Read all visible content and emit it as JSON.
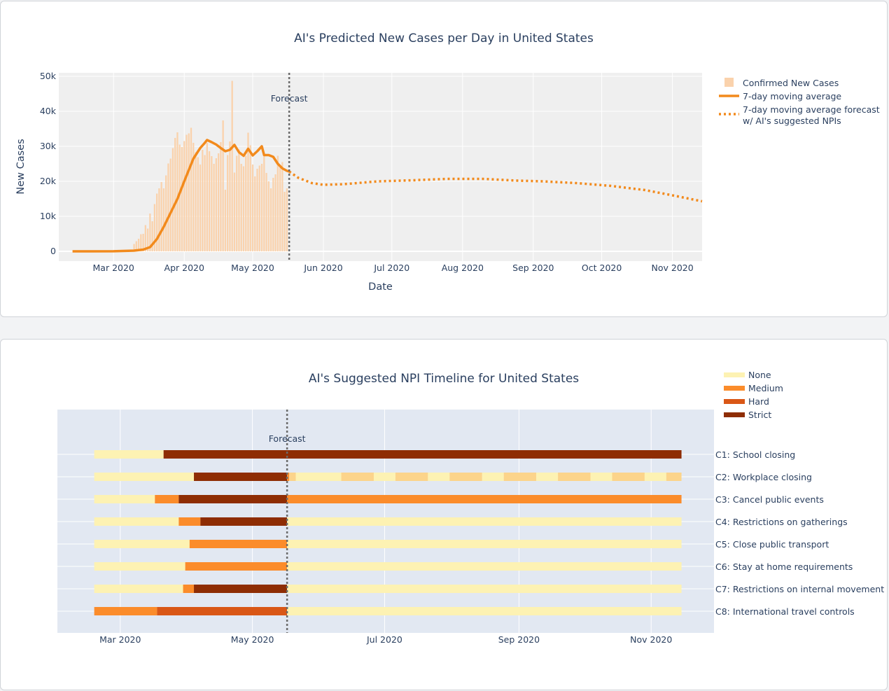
{
  "colors": {
    "bar": "#fad2ac",
    "line": "#f28a1c",
    "forecast_line": "#f28a1c",
    "vline": "#6b6b6b",
    "plot_bg_1": "#efefef",
    "plot_bg_2": "#e2e8f2",
    "none": "#fdf2b3",
    "none_alt": "#fcd48b",
    "medium": "#fb8c2b",
    "hard": "#d95716",
    "strict": "#8e2d04"
  },
  "chart_data": [
    {
      "type": "bar",
      "title": "AI's Predicted New Cases per Day in United States",
      "xlabel": "Date",
      "ylabel": "New Cases",
      "xlim": [
        "2020-02-06",
        "2020-11-14"
      ],
      "ylim": [
        -2800,
        51000
      ],
      "x_ticks": [
        "2020-03-01",
        "2020-04-01",
        "2020-05-01",
        "2020-06-01",
        "2020-07-01",
        "2020-08-01",
        "2020-09-01",
        "2020-10-01",
        "2020-11-01"
      ],
      "x_tick_labels": [
        "Mar 2020",
        "Apr 2020",
        "May 2020",
        "Jun 2020",
        "Jul 2020",
        "Aug 2020",
        "Sep 2020",
        "Oct 2020",
        "Nov 2020"
      ],
      "y_ticks": [
        0,
        10000,
        20000,
        30000,
        40000,
        50000
      ],
      "y_tick_labels": [
        "0",
        "10k",
        "20k",
        "30k",
        "40k",
        "50k"
      ],
      "grid": true,
      "legend_position": "top-right",
      "forecast_date": "2020-05-17",
      "forecast_label": "Forecast",
      "series": [
        {
          "name": "Confirmed New Cases",
          "type": "bar",
          "start_date": "2020-03-10",
          "values": [
            2100,
            2900,
            3600,
            4900,
            5000,
            7500,
            6500,
            10800,
            8600,
            13500,
            16500,
            18000,
            19800,
            18000,
            21700,
            25100,
            26500,
            29500,
            32400,
            34000,
            30500,
            29800,
            31500,
            33300,
            33700,
            35300,
            31000,
            28300,
            26900,
            24800,
            29000,
            27500,
            31000,
            28600,
            27200,
            25000,
            26600,
            28000,
            31200,
            37400,
            17600,
            27500,
            31400,
            48700,
            22500,
            27300,
            29100,
            25000,
            24300,
            27300,
            33900,
            30300,
            24800,
            21400,
            23600,
            24500,
            25000,
            27600,
            22400,
            20000,
            18000,
            21000,
            22000,
            27300,
            24000,
            25500,
            17000,
            18000
          ]
        },
        {
          "name": "7-day moving average",
          "type": "line",
          "points": [
            [
              "2020-02-12",
              0
            ],
            [
              "2020-03-01",
              30
            ],
            [
              "2020-03-10",
              200
            ],
            [
              "2020-03-14",
              500
            ],
            [
              "2020-03-17",
              1200
            ],
            [
              "2020-03-20",
              3500
            ],
            [
              "2020-03-23",
              7000
            ],
            [
              "2020-03-26",
              11000
            ],
            [
              "2020-03-29",
              15000
            ],
            [
              "2020-04-01",
              20000
            ],
            [
              "2020-04-05",
              26500
            ],
            [
              "2020-04-08",
              29500
            ],
            [
              "2020-04-10",
              31000
            ],
            [
              "2020-04-11",
              31800
            ],
            [
              "2020-04-13",
              31200
            ],
            [
              "2020-04-15",
              30500
            ],
            [
              "2020-04-17",
              29500
            ],
            [
              "2020-04-19",
              28600
            ],
            [
              "2020-04-21",
              29000
            ],
            [
              "2020-04-23",
              30400
            ],
            [
              "2020-04-25",
              28300
            ],
            [
              "2020-04-27",
              27300
            ],
            [
              "2020-04-29",
              29300
            ],
            [
              "2020-05-01",
              27400
            ],
            [
              "2020-05-03",
              28600
            ],
            [
              "2020-05-05",
              30000
            ],
            [
              "2020-05-06",
              27500
            ],
            [
              "2020-05-08",
              27500
            ],
            [
              "2020-05-10",
              27000
            ],
            [
              "2020-05-12",
              25000
            ],
            [
              "2020-05-14",
              23700
            ],
            [
              "2020-05-16",
              23000
            ],
            [
              "2020-05-17",
              22800
            ]
          ]
        },
        {
          "name": "7-day moving average forecast w/ AI's suggested NPIs",
          "name_lines": [
            "7-day moving average forecast",
            "w/ AI's suggested NPIs"
          ],
          "type": "line",
          "style": "dotted",
          "points": [
            [
              "2020-05-17",
              22800
            ],
            [
              "2020-05-21",
              21000
            ],
            [
              "2020-05-27",
              19500
            ],
            [
              "2020-06-01",
              19000
            ],
            [
              "2020-06-10",
              19200
            ],
            [
              "2020-06-25",
              20000
            ],
            [
              "2020-07-10",
              20300
            ],
            [
              "2020-07-25",
              20700
            ],
            [
              "2020-08-10",
              20700
            ],
            [
              "2020-08-25",
              20200
            ],
            [
              "2020-09-05",
              20000
            ],
            [
              "2020-09-20",
              19500
            ],
            [
              "2020-10-05",
              18700
            ],
            [
              "2020-10-20",
              17500
            ],
            [
              "2020-11-01",
              16000
            ],
            [
              "2020-11-14",
              14300
            ]
          ]
        }
      ]
    },
    {
      "type": "timeline",
      "title": "AI's Suggested NPI Timeline for United States",
      "xlim": [
        "2020-02-01",
        "2020-11-30"
      ],
      "x_ticks": [
        "2020-03-01",
        "2020-05-01",
        "2020-07-01",
        "2020-09-01",
        "2020-11-01"
      ],
      "x_tick_labels": [
        "Mar 2020",
        "May 2020",
        "Jul 2020",
        "Sep 2020",
        "Nov 2020"
      ],
      "grid": true,
      "forecast_date": "2020-05-17",
      "forecast_label": "Forecast",
      "legend_position": "top-right",
      "levels": [
        "None",
        "Medium",
        "Hard",
        "Strict"
      ],
      "rows": [
        {
          "label": "C1: School closing",
          "segments": [
            [
              "2020-02-18",
              "2020-03-21",
              "None"
            ],
            [
              "2020-03-21",
              "2020-11-15",
              "Strict"
            ]
          ]
        },
        {
          "label": "C2: Workplace closing",
          "segments": [
            [
              "2020-02-18",
              "2020-04-04",
              "None"
            ],
            [
              "2020-04-04",
              "2020-05-17",
              "Strict"
            ],
            [
              "2020-05-17",
              "2020-05-18",
              "Medium"
            ],
            [
              "2020-05-18",
              "2020-05-21",
              "None alt"
            ],
            [
              "2020-05-21",
              "2020-06-11",
              "None"
            ],
            [
              "2020-06-11",
              "2020-06-26",
              "None alt"
            ],
            [
              "2020-06-26",
              "2020-07-06",
              "None"
            ],
            [
              "2020-07-06",
              "2020-07-21",
              "None alt"
            ],
            [
              "2020-07-21",
              "2020-07-31",
              "None"
            ],
            [
              "2020-07-31",
              "2020-08-15",
              "None alt"
            ],
            [
              "2020-08-15",
              "2020-08-25",
              "None"
            ],
            [
              "2020-08-25",
              "2020-09-09",
              "None alt"
            ],
            [
              "2020-09-09",
              "2020-09-19",
              "None"
            ],
            [
              "2020-09-19",
              "2020-10-04",
              "None alt"
            ],
            [
              "2020-10-04",
              "2020-10-14",
              "None"
            ],
            [
              "2020-10-14",
              "2020-10-29",
              "None alt"
            ],
            [
              "2020-10-29",
              "2020-11-08",
              "None"
            ],
            [
              "2020-11-08",
              "2020-11-15",
              "None alt"
            ]
          ]
        },
        {
          "label": "C3: Cancel public events",
          "segments": [
            [
              "2020-02-18",
              "2020-03-17",
              "None"
            ],
            [
              "2020-03-17",
              "2020-03-28",
              "Medium"
            ],
            [
              "2020-03-28",
              "2020-05-17",
              "Strict"
            ],
            [
              "2020-05-17",
              "2020-11-15",
              "Medium"
            ]
          ]
        },
        {
          "label": "C4: Restrictions on gatherings",
          "segments": [
            [
              "2020-02-18",
              "2020-03-28",
              "None"
            ],
            [
              "2020-03-28",
              "2020-04-07",
              "Medium"
            ],
            [
              "2020-04-07",
              "2020-05-17",
              "Strict"
            ],
            [
              "2020-05-17",
              "2020-11-15",
              "None"
            ]
          ]
        },
        {
          "label": "C5: Close public transport",
          "segments": [
            [
              "2020-02-18",
              "2020-04-02",
              "None"
            ],
            [
              "2020-04-02",
              "2020-05-17",
              "Medium"
            ],
            [
              "2020-05-17",
              "2020-11-15",
              "None"
            ]
          ]
        },
        {
          "label": "C6: Stay at home requirements",
          "segments": [
            [
              "2020-02-18",
              "2020-03-31",
              "None"
            ],
            [
              "2020-03-31",
              "2020-05-17",
              "Medium"
            ],
            [
              "2020-05-17",
              "2020-11-15",
              "None"
            ]
          ]
        },
        {
          "label": "C7: Restrictions on internal movement",
          "segments": [
            [
              "2020-02-18",
              "2020-03-30",
              "None"
            ],
            [
              "2020-03-30",
              "2020-04-04",
              "Medium"
            ],
            [
              "2020-04-04",
              "2020-05-17",
              "Strict"
            ],
            [
              "2020-05-17",
              "2020-11-15",
              "None"
            ]
          ]
        },
        {
          "label": "C8: International travel controls",
          "segments": [
            [
              "2020-02-18",
              "2020-03-18",
              "Medium"
            ],
            [
              "2020-03-18",
              "2020-05-17",
              "Hard"
            ],
            [
              "2020-05-17",
              "2020-11-15",
              "None"
            ]
          ]
        }
      ]
    }
  ]
}
